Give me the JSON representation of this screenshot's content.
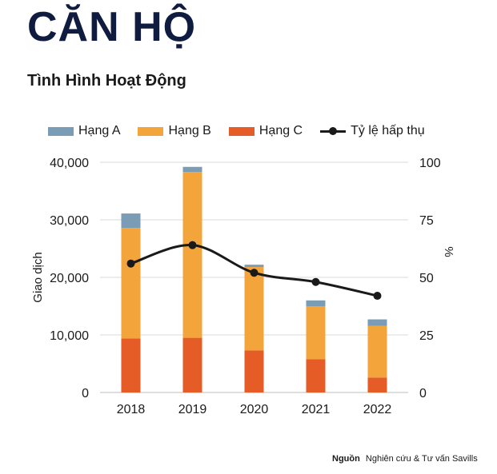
{
  "header": {
    "title": "CĂN HỘ",
    "subtitle": "Tình Hình Hoạt Động"
  },
  "legend": {
    "items": [
      {
        "label": "Hạng A",
        "color": "#7a9db5"
      },
      {
        "label": "Hạng B",
        "color": "#f3a43b"
      },
      {
        "label": "Hạng C",
        "color": "#e65c27"
      },
      {
        "label": "Tỷ lệ hấp thụ",
        "color": "#1a1a1a"
      }
    ]
  },
  "chart_data": {
    "type": "bar",
    "stacked": true,
    "categories": [
      "2018",
      "2019",
      "2020",
      "2021",
      "2022"
    ],
    "series": [
      {
        "name": "Hạng C",
        "values": [
          9400,
          9500,
          7300,
          5800,
          2600
        ],
        "color": "#e65c27"
      },
      {
        "name": "Hạng B",
        "values": [
          19200,
          28800,
          14500,
          9200,
          9000
        ],
        "color": "#f3a43b"
      },
      {
        "name": "Hạng A",
        "values": [
          2500,
          900,
          400,
          1000,
          1100
        ],
        "color": "#7a9db5"
      }
    ],
    "line_series": {
      "name": "Tỷ lệ hấp thụ",
      "values": [
        56,
        64,
        52,
        48,
        42
      ],
      "color": "#1a1a1a",
      "axis": "right"
    },
    "ylabel": "Giao dịch",
    "y2label": "%",
    "ylim": [
      0,
      40000
    ],
    "y2lim": [
      0,
      100
    ],
    "yticks": [
      "0",
      "10,000",
      "20,000",
      "30,000",
      "40,000"
    ],
    "y2ticks": [
      "0",
      "25",
      "50",
      "75",
      "100"
    ],
    "grid": true,
    "legend_position": "top"
  },
  "footer": {
    "source_label": "Nguồn",
    "source_text": "Nghiên cứu & Tư vấn Savills"
  }
}
